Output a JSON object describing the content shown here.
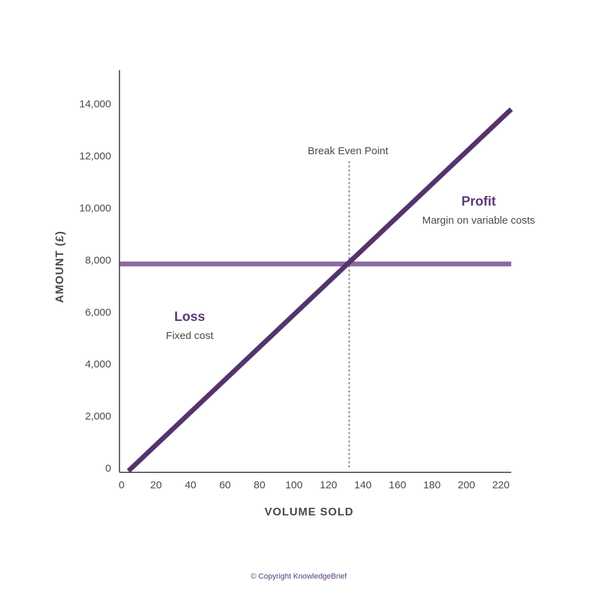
{
  "chart_data": {
    "type": "line",
    "title": "",
    "xlabel": "VOLUME SOLD",
    "ylabel": "AMOUNT (£)",
    "xlim": [
      0,
      226
    ],
    "ylim": [
      0,
      15300
    ],
    "x_ticks": [
      0,
      20,
      40,
      60,
      80,
      100,
      120,
      140,
      160,
      180,
      200,
      220
    ],
    "x_tick_labels": [
      "0",
      "20",
      "40",
      "60",
      "80",
      "100",
      "120",
      "140",
      "160",
      "180",
      "200",
      "220"
    ],
    "y_ticks": [
      0,
      2000,
      4000,
      6000,
      8000,
      10000,
      12000,
      14000
    ],
    "y_tick_labels": [
      "0",
      "2,000",
      "4,000",
      "6,000",
      "8,000",
      "10,000",
      "12,000",
      "14,000"
    ],
    "grid": false,
    "series": [
      {
        "name": "Fixed cost",
        "x": [
          0,
          226
        ],
        "y": [
          7850,
          7850
        ],
        "color": "#8a6aa2"
      },
      {
        "name": "Margin on variable costs",
        "x": [
          4,
          226
        ],
        "y": [
          0,
          13800
        ],
        "color": "#53346d"
      }
    ],
    "break_even": {
      "x": 132,
      "y": 7850,
      "label": "Break Even Point"
    },
    "annotations": [
      {
        "title": "Loss",
        "subtitle": "Fixed cost"
      },
      {
        "title": "Profit",
        "subtitle": "Margin on variable costs"
      }
    ]
  },
  "copyright": "© Copyright KnowledgeBrief",
  "colors": {
    "accent": "#5b3a78",
    "axis": "#333333",
    "text": "#4a4a4a"
  }
}
